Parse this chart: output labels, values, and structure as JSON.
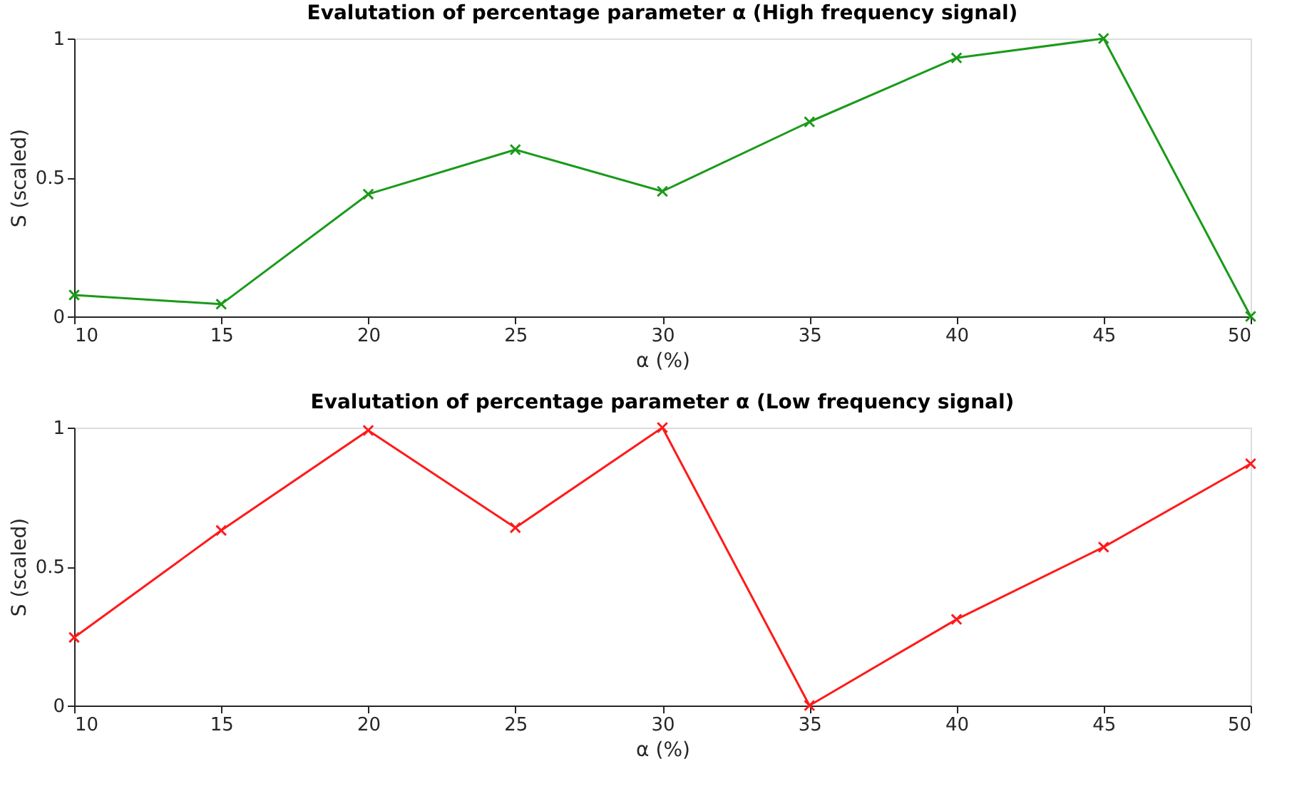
{
  "chart_data": [
    {
      "type": "line",
      "title": "Evalutation of percentage parameter α (High frequency signal)",
      "xlabel": "α (%)",
      "ylabel": "S (scaled)",
      "x": [
        10,
        15,
        20,
        25,
        30,
        35,
        40,
        45,
        50
      ],
      "xlim": [
        10,
        50
      ],
      "xticks": [
        10,
        15,
        20,
        25,
        30,
        35,
        40,
        45,
        50
      ],
      "ylim": [
        0,
        1
      ],
      "yticks": [
        0,
        0.5,
        1
      ],
      "grid": false,
      "marker": "cross",
      "line_style": "solid",
      "series": [
        {
          "color": "#1a9a1a",
          "values": [
            0.077,
            0.044,
            0.44,
            0.6,
            0.45,
            0.7,
            0.93,
            1.0,
            0.0
          ]
        }
      ]
    },
    {
      "type": "line",
      "title": "Evalutation of percentage parameter α (Low frequency signal)",
      "xlabel": "α (%)",
      "ylabel": "S (scaled)",
      "x": [
        10,
        15,
        20,
        25,
        30,
        35,
        40,
        45,
        50
      ],
      "xlim": [
        10,
        50
      ],
      "xticks": [
        10,
        15,
        20,
        25,
        30,
        35,
        40,
        45,
        50
      ],
      "ylim": [
        0,
        1
      ],
      "yticks": [
        0,
        0.5,
        1
      ],
      "grid": false,
      "marker": "cross",
      "line_style": "solid",
      "series": [
        {
          "color": "#ff1a1a",
          "values": [
            0.245,
            0.63,
            0.99,
            0.64,
            1.0,
            0.0,
            0.31,
            0.57,
            0.87
          ]
        }
      ]
    }
  ]
}
